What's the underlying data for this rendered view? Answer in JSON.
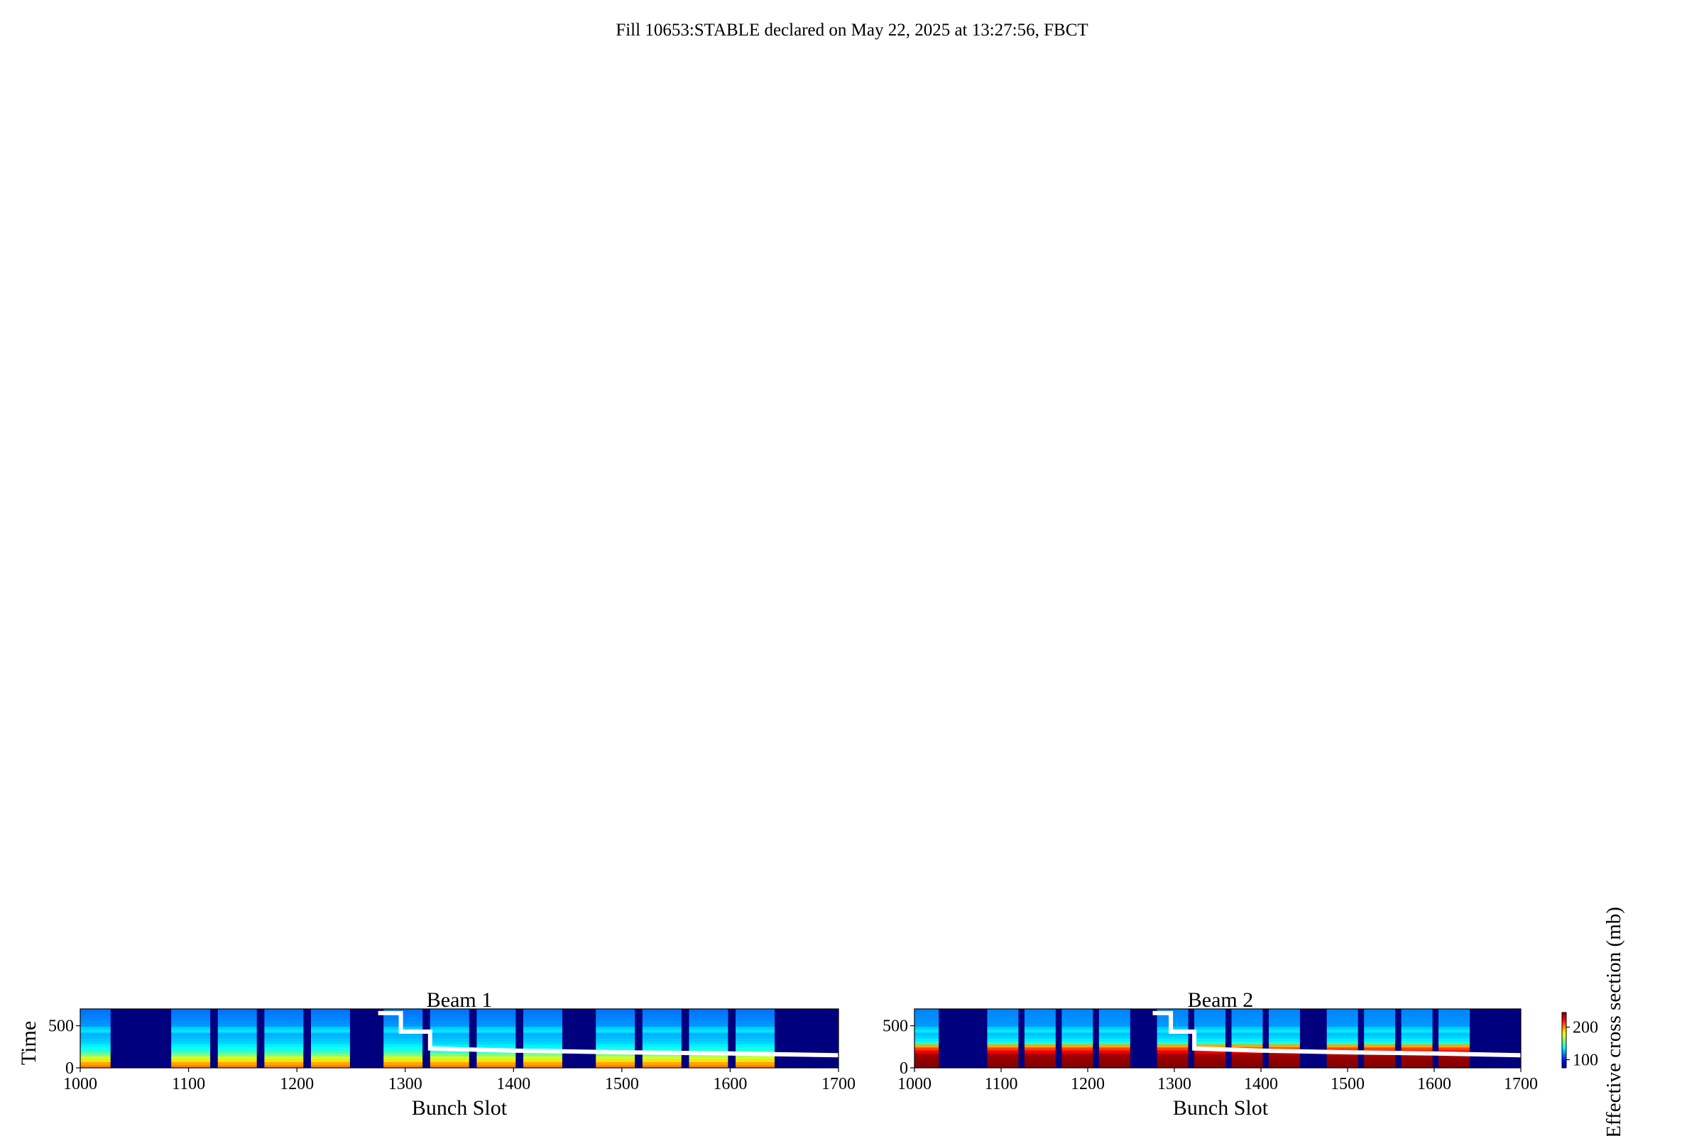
{
  "figure": {
    "suptitle": "Fill 10653:STABLE declared on May 22, 2025 at 13:27:56, FBCT"
  },
  "colorbar": {
    "label": "Effective cross section (mb)",
    "ticks": [
      100,
      200
    ],
    "range": [
      75,
      245
    ],
    "colors": [
      "#00007f",
      "#0000ff",
      "#007fff",
      "#00ffff",
      "#7fff7f",
      "#ffff00",
      "#ff7f00",
      "#ff0000",
      "#7f0000"
    ]
  },
  "chart_data": [
    {
      "type": "heatmap",
      "title": "Beam 1",
      "xlabel": "Bunch Slot",
      "ylabel": "Time",
      "xlim": [
        1000,
        1700
      ],
      "ylim": [
        0,
        700
      ],
      "xticks": [
        1000,
        1100,
        1200,
        1300,
        1400,
        1500,
        1600,
        1700
      ],
      "yticks": [
        0,
        500
      ],
      "background_value": 75,
      "trains": [
        {
          "start": 1000,
          "end": 1028
        },
        {
          "start": 1084,
          "end": 1120
        },
        {
          "start": 1127,
          "end": 1163
        },
        {
          "start": 1170,
          "end": 1206
        },
        {
          "start": 1213,
          "end": 1249
        },
        {
          "start": 1280,
          "end": 1316
        },
        {
          "start": 1323,
          "end": 1359
        },
        {
          "start": 1366,
          "end": 1402
        },
        {
          "start": 1409,
          "end": 1445
        },
        {
          "start": 1476,
          "end": 1512
        },
        {
          "start": 1519,
          "end": 1555
        },
        {
          "start": 1562,
          "end": 1598
        },
        {
          "start": 1605,
          "end": 1641
        }
      ],
      "time_profile": [
        {
          "t": 0,
          "value": 205
        },
        {
          "t": 60,
          "value": 195
        },
        {
          "t": 120,
          "value": 175
        },
        {
          "t": 180,
          "value": 150
        },
        {
          "t": 240,
          "value": 140
        },
        {
          "t": 300,
          "value": 132
        },
        {
          "t": 400,
          "value": 125
        },
        {
          "t": 450,
          "value": 138
        },
        {
          "t": 500,
          "value": 122
        },
        {
          "t": 600,
          "value": 118
        },
        {
          "t": 700,
          "value": 115
        }
      ],
      "step_line": {
        "x": [
          1275,
          1296,
          1296,
          1323,
          1323,
          1400,
          1500,
          1600,
          1700
        ],
        "y": [
          650,
          650,
          430,
          430,
          230,
          205,
          185,
          170,
          150
        ]
      }
    },
    {
      "type": "heatmap",
      "title": "Beam 2",
      "xlabel": "Bunch Slot",
      "ylabel": "",
      "xlim": [
        1000,
        1700
      ],
      "ylim": [
        0,
        700
      ],
      "xticks": [
        1000,
        1100,
        1200,
        1300,
        1400,
        1500,
        1600,
        1700
      ],
      "yticks": [
        0,
        500
      ],
      "background_value": 75,
      "trains": [
        {
          "start": 1000,
          "end": 1028
        },
        {
          "start": 1084,
          "end": 1120
        },
        {
          "start": 1127,
          "end": 1163
        },
        {
          "start": 1170,
          "end": 1206
        },
        {
          "start": 1213,
          "end": 1249
        },
        {
          "start": 1280,
          "end": 1316
        },
        {
          "start": 1323,
          "end": 1359
        },
        {
          "start": 1366,
          "end": 1402
        },
        {
          "start": 1409,
          "end": 1445
        },
        {
          "start": 1476,
          "end": 1512
        },
        {
          "start": 1519,
          "end": 1555
        },
        {
          "start": 1562,
          "end": 1598
        },
        {
          "start": 1605,
          "end": 1641
        }
      ],
      "time_profile": [
        {
          "t": 0,
          "value": 245
        },
        {
          "t": 150,
          "value": 240
        },
        {
          "t": 210,
          "value": 220
        },
        {
          "t": 260,
          "value": 200
        },
        {
          "t": 300,
          "value": 140
        },
        {
          "t": 400,
          "value": 128
        },
        {
          "t": 450,
          "value": 138
        },
        {
          "t": 500,
          "value": 122
        },
        {
          "t": 700,
          "value": 118
        }
      ],
      "step_line": {
        "x": [
          1275,
          1296,
          1296,
          1323,
          1323,
          1400,
          1500,
          1600,
          1700
        ],
        "y": [
          650,
          650,
          430,
          430,
          230,
          205,
          185,
          170,
          150
        ]
      }
    }
  ]
}
